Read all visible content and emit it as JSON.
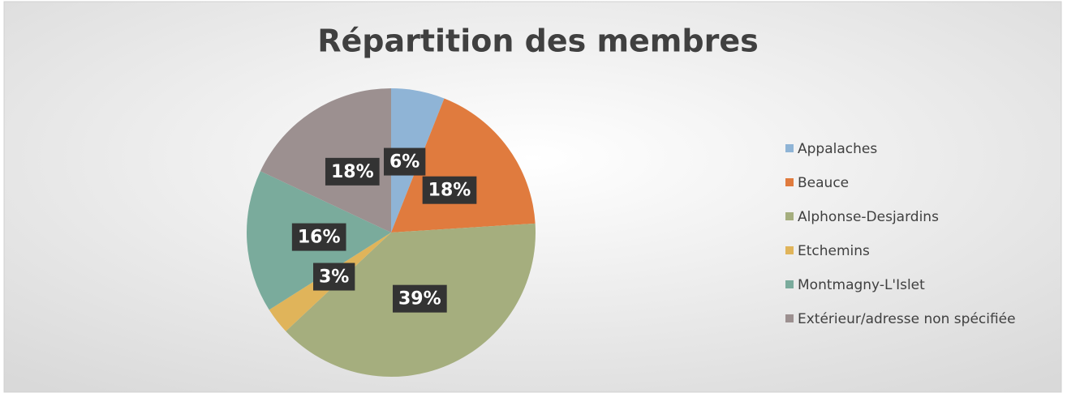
{
  "chart_data": {
    "type": "pie",
    "title": "Répartition des membres",
    "categories": [
      "Appalaches",
      "Beauce",
      "Alphonse-Desjardins",
      "Etchemins",
      "Montmagny-L'Islet",
      "Extérieur/adresse non spécifiée"
    ],
    "values": [
      6,
      18,
      39,
      3,
      16,
      18
    ],
    "value_labels": [
      "6%",
      "18%",
      "39%",
      "3%",
      "16%",
      "18%"
    ],
    "colors": [
      "#8fb4d6",
      "#e07b3e",
      "#a5ae7e",
      "#e0b45a",
      "#7aab9c",
      "#9c9090"
    ],
    "legend": "right"
  }
}
